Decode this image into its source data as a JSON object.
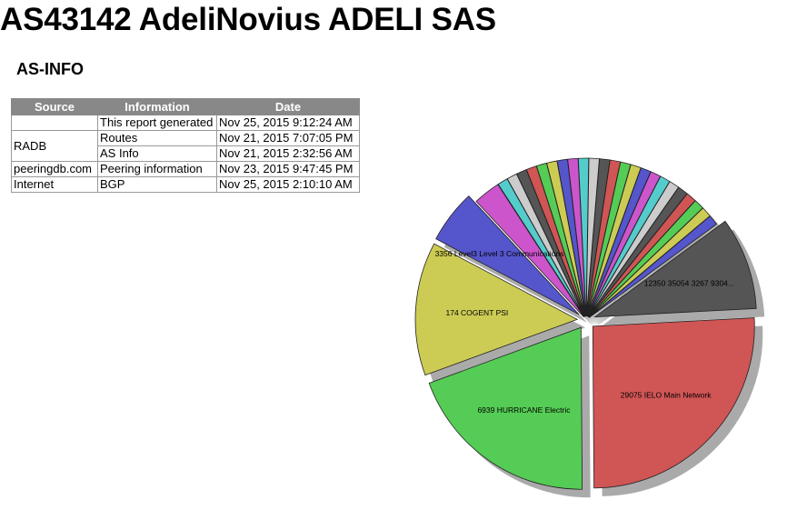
{
  "page": {
    "title": "AS43142 AdeliNovius ADELI SAS",
    "section": "AS-INFO"
  },
  "table": {
    "headers": [
      "Source",
      "Information",
      "Date"
    ],
    "groups": [
      {
        "source": "",
        "rows": [
          {
            "info": "This report generated",
            "date": "Nov 25, 2015 9:12:24 AM"
          }
        ]
      },
      {
        "source": "RADB",
        "rows": [
          {
            "info": "Routes",
            "date": "Nov 21, 2015 7:07:05 PM"
          },
          {
            "info": "AS Info",
            "date": "Nov 21, 2015 2:32:56 AM"
          }
        ]
      },
      {
        "source": "peeringdb.com",
        "rows": [
          {
            "info": "Peering information",
            "date": "Nov 23, 2015 9:47:45 PM"
          }
        ]
      },
      {
        "source": "Internet",
        "rows": [
          {
            "info": "BGP",
            "date": "Nov 25, 2015 2:10:10 AM"
          }
        ]
      }
    ]
  },
  "chart_data": {
    "type": "pie",
    "slices": [
      {
        "label": "29075 IELO Main Network",
        "value": 27,
        "color": "#d05555",
        "labeled": true
      },
      {
        "label": "6939 HURRICANE Electric",
        "value": 20.5,
        "color": "#55cc55",
        "labeled": true
      },
      {
        "label": "174 COGENT PSI",
        "value": 14,
        "color": "#cccc55",
        "labeled": true
      },
      {
        "label": "3356 Level3 Level 3 Communications",
        "value": 5.6,
        "color": "#5555cc",
        "labeled": true
      },
      {
        "label": "",
        "value": 2.9,
        "color": "#cc55cc",
        "labeled": false
      },
      {
        "label": "",
        "value": 1.1,
        "color": "#55cccc",
        "labeled": false
      },
      {
        "label": "",
        "value": 1.1,
        "color": "#cccccc",
        "labeled": false
      },
      {
        "label": "",
        "value": 1.1,
        "color": "#555555",
        "labeled": false
      },
      {
        "label": "",
        "value": 1.1,
        "color": "#d05555",
        "labeled": false
      },
      {
        "label": "",
        "value": 1.1,
        "color": "#55cc55",
        "labeled": false
      },
      {
        "label": "",
        "value": 1.1,
        "color": "#cccc55",
        "labeled": false
      },
      {
        "label": "",
        "value": 1.1,
        "color": "#5555cc",
        "labeled": false
      },
      {
        "label": "",
        "value": 1.1,
        "color": "#cc55cc",
        "labeled": false
      },
      {
        "label": "",
        "value": 1.1,
        "color": "#55cccc",
        "labeled": false
      },
      {
        "label": "",
        "value": 1.1,
        "color": "#cccccc",
        "labeled": false
      },
      {
        "label": "",
        "value": 1.1,
        "color": "#555555",
        "labeled": false
      },
      {
        "label": "",
        "value": 1.1,
        "color": "#d05555",
        "labeled": false
      },
      {
        "label": "",
        "value": 1.1,
        "color": "#55cc55",
        "labeled": false
      },
      {
        "label": "",
        "value": 1.1,
        "color": "#cccc55",
        "labeled": false
      },
      {
        "label": "",
        "value": 1.1,
        "color": "#5555cc",
        "labeled": false
      },
      {
        "label": "",
        "value": 1.1,
        "color": "#cc55cc",
        "labeled": false
      },
      {
        "label": "",
        "value": 1.1,
        "color": "#55cccc",
        "labeled": false
      },
      {
        "label": "",
        "value": 1.1,
        "color": "#cccccc",
        "labeled": false
      },
      {
        "label": "",
        "value": 1.1,
        "color": "#555555",
        "labeled": false
      },
      {
        "label": "",
        "value": 1.1,
        "color": "#d05555",
        "labeled": false
      },
      {
        "label": "",
        "value": 1.1,
        "color": "#55cc55",
        "labeled": false
      },
      {
        "label": "",
        "value": 1.1,
        "color": "#cccc55",
        "labeled": false
      },
      {
        "label": "",
        "value": 1.1,
        "color": "#5555cc",
        "labeled": false
      },
      {
        "label": "12350 35054 3267 9304...",
        "value": 9.7,
        "color": "#555555",
        "labeled": true
      }
    ]
  }
}
